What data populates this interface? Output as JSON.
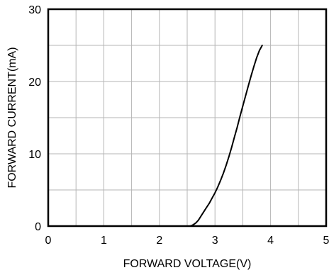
{
  "chart_data": {
    "type": "line",
    "title": "",
    "xlabel": "FORWARD VOLTAGE(V)",
    "ylabel": "FORWARD CURRENT(mA)",
    "xlim": [
      0,
      5
    ],
    "ylim": [
      0,
      30
    ],
    "x_ticks": [
      "0",
      "1",
      "2",
      "3",
      "4",
      "5"
    ],
    "y_ticks": [
      "0",
      "10",
      "20",
      "30"
    ],
    "grid": true,
    "legend": "none",
    "series": [
      {
        "color": "#000000",
        "x": [
          2.55,
          2.6,
          2.65,
          2.7,
          2.75,
          2.8,
          2.85,
          2.9,
          2.95,
          3.0,
          3.05,
          3.1,
          3.15,
          3.2,
          3.25,
          3.3,
          3.35,
          3.4,
          3.45,
          3.5,
          3.55,
          3.6,
          3.65,
          3.7,
          3.75,
          3.8,
          3.85
        ],
        "y": [
          0.0,
          0.15,
          0.4,
          0.8,
          1.4,
          2.0,
          2.6,
          3.2,
          3.9,
          4.6,
          5.4,
          6.3,
          7.3,
          8.4,
          9.6,
          10.9,
          12.3,
          13.7,
          15.2,
          16.6,
          18.0,
          19.4,
          20.8,
          22.1,
          23.3,
          24.3,
          25.0
        ]
      }
    ]
  }
}
